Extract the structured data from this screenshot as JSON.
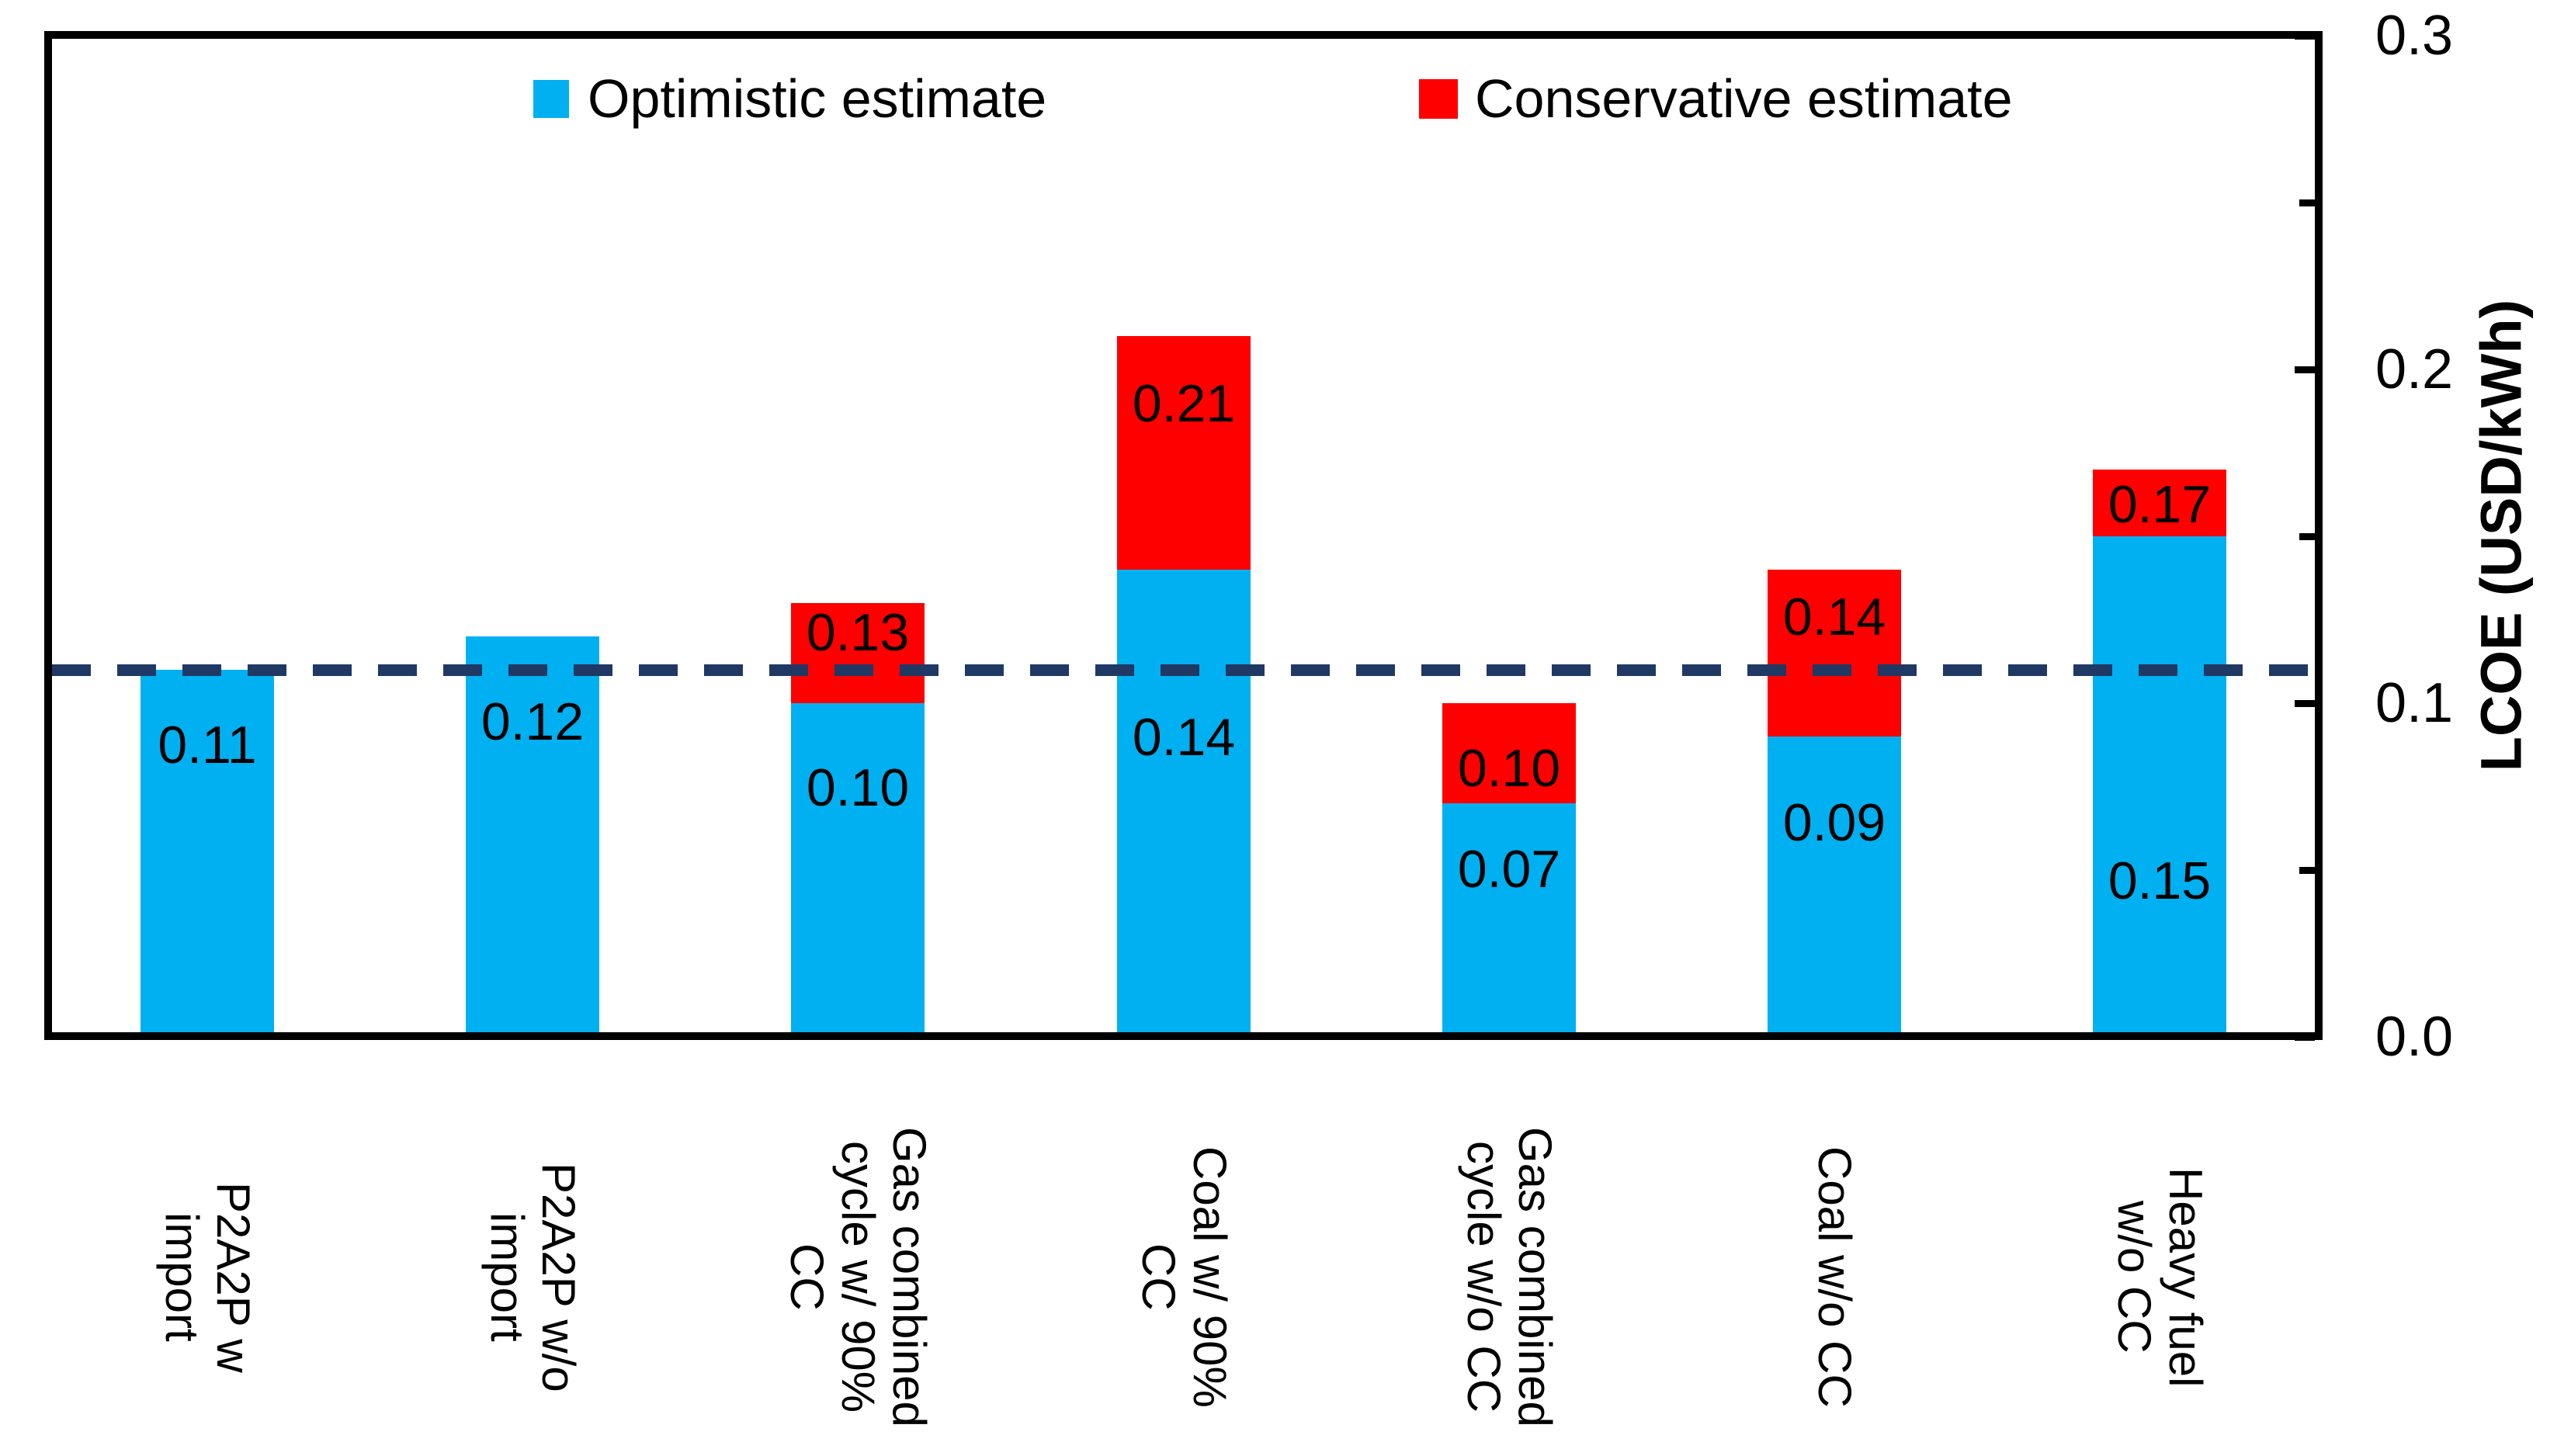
{
  "chart_data": {
    "type": "bar",
    "stacked": true,
    "title": "",
    "categories": [
      "P2A2P w import",
      "P2A2P w/o import",
      "Gas combined cycle w/ 90% CC",
      "Coal w/ 90% CC",
      "Gas combined cycle w/o CC",
      "Coal w/o CC",
      "Heavy fuel w/o CC"
    ],
    "category_lines": [
      [
        "P2A2P w",
        "import"
      ],
      [
        "P2A2P w/o",
        "import"
      ],
      [
        "Gas combined",
        "cycle w/ 90%",
        "CC"
      ],
      [
        "Coal w/ 90%",
        "CC"
      ],
      [
        "Gas combined",
        "cycle w/o CC"
      ],
      [
        "Coal w/o CC"
      ],
      [
        "Heavy fuel",
        "w/o CC"
      ]
    ],
    "series": [
      {
        "name": "Optimistic estimate",
        "color": "#00B0F0",
        "values": [
          0.11,
          0.12,
          0.1,
          0.14,
          0.07,
          0.09,
          0.15
        ],
        "labels": [
          "0.11",
          "0.12",
          "0.10",
          "0.14",
          "0.07",
          "0.09",
          "0.15"
        ]
      },
      {
        "name": "Conservative estimate",
        "color": "#FF0000",
        "values": [
          null,
          null,
          0.13,
          0.21,
          0.1,
          0.14,
          0.17
        ],
        "labels": [
          "",
          "",
          "0.13",
          "0.21",
          "0.10",
          "0.14",
          "0.17"
        ]
      }
    ],
    "reference_line": {
      "value": 0.11,
      "color": "#1F3864",
      "style": "dashed"
    },
    "xlabel": "",
    "ylabel": "LCOE (USD/kWh)",
    "ylim": [
      0.0,
      0.3
    ],
    "yticks": [
      {
        "label": "0.0",
        "value": 0.0
      },
      {
        "label": "0.1",
        "value": 0.1
      },
      {
        "label": "0.2",
        "value": 0.2
      },
      {
        "label": "0.3",
        "value": 0.3
      }
    ],
    "minor_tick_values": [
      0.05,
      0.15,
      0.25
    ],
    "grid": false,
    "legend_position": "top-inside",
    "layout_hints": {
      "optimistic_label_dy": [
        97,
        110,
        109,
        216,
        85,
        111,
        444
      ],
      "conservative_label_dy": [
        0,
        0,
        38,
        87,
        84,
        61,
        45
      ]
    }
  },
  "colors": {
    "optimistic": "#00B0F0",
    "conservative": "#FF0000",
    "reference_line": "#1F3864",
    "axis": "#000000",
    "background": "#FFFFFF"
  }
}
